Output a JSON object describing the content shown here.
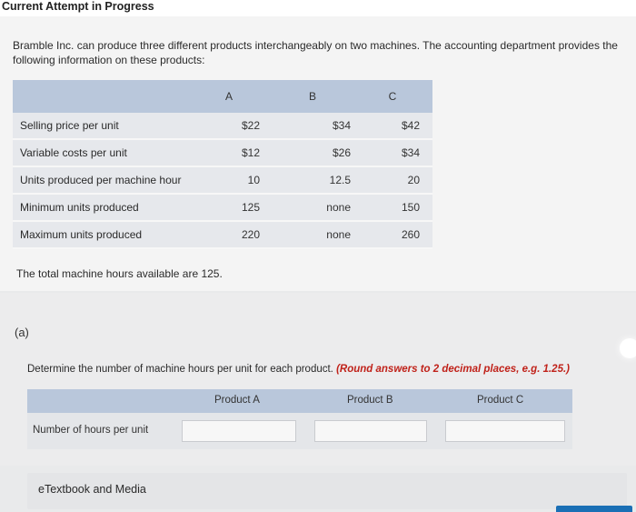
{
  "header": {
    "title": "Current Attempt in Progress"
  },
  "problem": {
    "intro": "Bramble Inc. can produce three different products interchangeably on two machines. The accounting department provides the following information on these products:",
    "columns": [
      "A",
      "B",
      "C"
    ],
    "rows": [
      {
        "label": "Selling price per unit",
        "values": [
          "$22",
          "$34",
          "$42"
        ]
      },
      {
        "label": "Variable costs per unit",
        "values": [
          "$12",
          "$26",
          "$34"
        ]
      },
      {
        "label": "Units produced per machine hour",
        "values": [
          "10",
          "12.5",
          "20"
        ]
      },
      {
        "label": "Minimum units produced",
        "values": [
          "125",
          "none",
          "150"
        ]
      },
      {
        "label": "Maximum units produced",
        "values": [
          "220",
          "none",
          "260"
        ]
      }
    ],
    "hours_note": "The total machine hours available are 125."
  },
  "part": {
    "label": "(a)",
    "instruction_main": "Determine the number of machine hours per unit for each product. ",
    "instruction_emph": "(Round answers to 2 decimal places, e.g. 1.25.)",
    "answer_columns": [
      "Product A",
      "Product B",
      "Product C"
    ],
    "answer_row_label": "Number of hours per unit",
    "answer_values": [
      "",
      "",
      ""
    ]
  },
  "footer": {
    "etextbook_label": "eTextbook and Media"
  },
  "colors": {
    "header_blue": "#b9c7db",
    "row_grey": "#e6e8ec",
    "emphasis_red": "#c0221a",
    "button_blue": "#1a6fb5"
  }
}
